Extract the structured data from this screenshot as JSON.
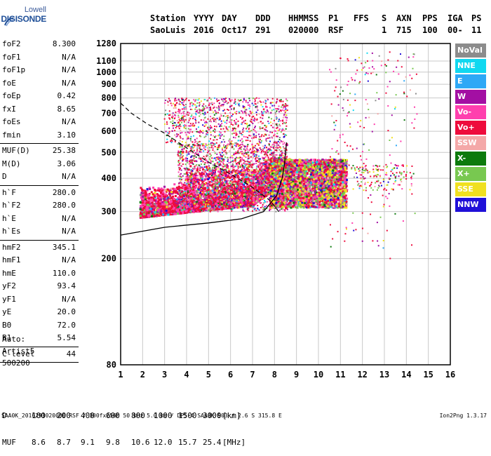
{
  "logo": {
    "line1": "Lowell",
    "line2": "DIGISONDE"
  },
  "header": {
    "row1": [
      "Station",
      "YYYY",
      "DAY",
      "DDD",
      "HHMMSS",
      "P1",
      "FFS",
      "S",
      "AXN",
      "PPS",
      "IGA",
      "PS"
    ],
    "row2": [
      "SaoLuis",
      "2016",
      "Oct17",
      "291",
      "020000",
      "RSF",
      "",
      "1",
      "715",
      "100",
      "00-",
      "11"
    ]
  },
  "params": [
    {
      "k": "foF2",
      "v": "8.300"
    },
    {
      "k": "foF1",
      "v": "N/A"
    },
    {
      "k": "foF1p",
      "v": "N/A"
    },
    {
      "k": "foE",
      "v": "N/A"
    },
    {
      "k": "foEp",
      "v": "0.42"
    },
    {
      "k": "fxI",
      "v": "8.65"
    },
    {
      "k": "foEs",
      "v": "N/A"
    },
    {
      "k": "fmin",
      "v": "3.10"
    },
    {
      "sep": true
    },
    {
      "k": "MUF(D)",
      "v": "25.38"
    },
    {
      "k": "M(D)",
      "v": "3.06"
    },
    {
      "k": "D",
      "v": "N/A"
    },
    {
      "sep": true
    },
    {
      "k": "h`F",
      "v": "280.0"
    },
    {
      "k": "h`F2",
      "v": "280.0"
    },
    {
      "k": "h`E",
      "v": "N/A"
    },
    {
      "k": "h`Es",
      "v": "N/A"
    },
    {
      "sep": true
    },
    {
      "k": "hmF2",
      "v": "345.1"
    },
    {
      "k": "hmF1",
      "v": "N/A"
    },
    {
      "k": "hmE",
      "v": "110.0"
    },
    {
      "k": "yF2",
      "v": "93.4"
    },
    {
      "k": "yF1",
      "v": "N/A"
    },
    {
      "k": "yE",
      "v": "20.0"
    },
    {
      "k": "B0",
      "v": "72.0"
    },
    {
      "k": "B1",
      "v": "5.54"
    },
    {
      "sep": true
    },
    {
      "k": "C-level",
      "v": "44"
    },
    {
      "sep": true
    }
  ],
  "auto": [
    "Auto:",
    "Artist5",
    "500200"
  ],
  "legend": [
    {
      "label": "NoVal",
      "color": "#8c8c8c"
    },
    {
      "label": "NNE",
      "color": "#11d8f0"
    },
    {
      "label": "E",
      "color": "#2ea8f6"
    },
    {
      "label": "W",
      "color": "#a30fa3"
    },
    {
      "label": "Vo-",
      "color": "#ff3fae"
    },
    {
      "label": "Vo+",
      "color": "#ee0c3c"
    },
    {
      "label": "SSW",
      "color": "#f4a8a8"
    },
    {
      "label": "X-",
      "color": "#0c7a0c"
    },
    {
      "label": "X+",
      "color": "#78c850"
    },
    {
      "label": "SSE",
      "color": "#f0e020"
    },
    {
      "label": "NNW",
      "color": "#2010d8"
    }
  ],
  "footer": {
    "d_row": [
      "D",
      "100",
      "200",
      "400",
      "600",
      "800",
      "1000",
      "1500",
      "3000",
      "[km]"
    ],
    "muf_row": [
      "MUF",
      "8.6",
      "8.7",
      "9.1",
      "9.8",
      "10.6",
      "12.0",
      "15.7",
      "25.4",
      "[MHz]"
    ],
    "file_line": "SAA0K_2016291020000.RSF / 300fx256h 50 kHz 5.0 km / DPS-4 SAA0K 903 / 2.6 S 315.8 E",
    "version": "Ion2Png 1.3.17"
  },
  "chart_data": {
    "type": "scatter",
    "xlim": [
      1,
      16
    ],
    "ylim": [
      80,
      1280
    ],
    "x_ticks": [
      1,
      2,
      3,
      4,
      5,
      6,
      7,
      8,
      9,
      10,
      11,
      12,
      13,
      14,
      15,
      16
    ],
    "y_ticks": [
      80,
      200,
      300,
      400,
      500,
      600,
      700,
      800,
      900,
      1000,
      1100,
      1280
    ],
    "grid": true,
    "y_scale": "log",
    "ionogram_clusters": [
      {
        "name": "F-layer o-trace",
        "x": [
          2,
          8.6
        ],
        "y": [
          255,
          460
        ],
        "density": "high"
      },
      {
        "name": "spread-F upper band",
        "x": [
          7.8,
          11.2
        ],
        "y": [
          300,
          470
        ],
        "density": "high"
      },
      {
        "name": "multi-hop echoes",
        "x": [
          3,
          8.5
        ],
        "y": [
          550,
          800
        ],
        "density": "sparse"
      },
      {
        "name": "scattered noise",
        "x": [
          10.5,
          14.5
        ],
        "y": [
          200,
          1200
        ],
        "density": "very sparse"
      }
    ],
    "fitted_profile_solid": [
      [
        1.0,
        245
      ],
      [
        3,
        262
      ],
      [
        5,
        272
      ],
      [
        6.5,
        282
      ],
      [
        7.5,
        300
      ],
      [
        8.1,
        345
      ],
      [
        8.35,
        400
      ],
      [
        8.45,
        450
      ],
      [
        8.5,
        500
      ],
      [
        8.55,
        545
      ]
    ],
    "fitted_profile_dashed": [
      [
        1.0,
        765
      ],
      [
        1.5,
        700
      ],
      [
        2.2,
        640
      ],
      [
        3,
        590
      ],
      [
        4,
        520
      ],
      [
        5,
        460
      ],
      [
        6,
        415
      ],
      [
        7,
        370
      ],
      [
        7.8,
        330
      ],
      [
        8.2,
        300
      ]
    ]
  }
}
